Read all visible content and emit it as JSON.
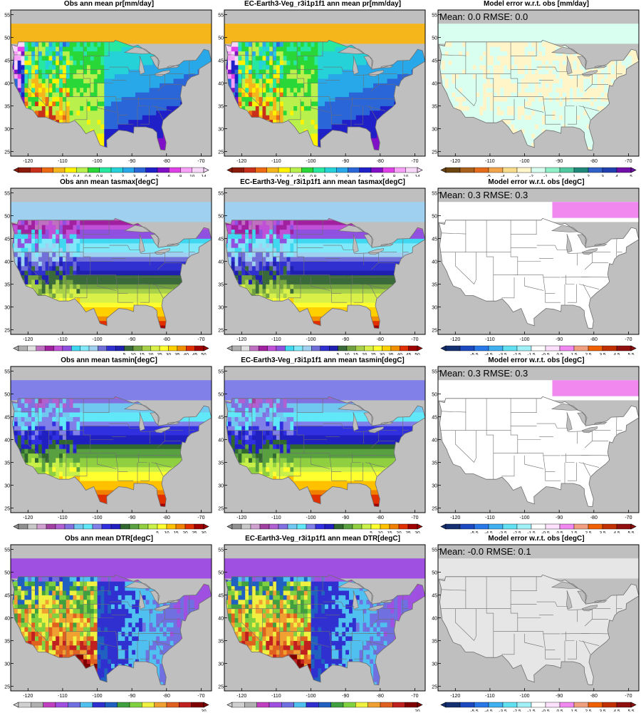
{
  "chart_data": {
    "type": "heatmap",
    "lon_ticks": [
      -120,
      -110,
      -100,
      -90,
      -80,
      -70
    ],
    "lat_ticks": [
      25,
      30,
      35,
      40,
      45,
      50,
      55
    ],
    "lon_range": [
      -125,
      -67
    ],
    "lat_range": [
      24,
      56
    ],
    "panels": [
      {
        "title": "Obs  ann mean pr[mm/day]",
        "field": "pr",
        "scale": "pr",
        "lbl_set": "pr"
      },
      {
        "title": "EC-Earth3-Veg_r3i1p1f1 ann mean pr[mm/day]",
        "field": "pr",
        "scale": "pr",
        "lbl_set": "pr"
      },
      {
        "title": "Model error w.r.t. obs [mm/day]",
        "field": "pr_err",
        "scale": "err_pr",
        "lbl_set": "err_pr",
        "stats": {
          "mean": "Mean: 0.0",
          "rmse": "RMSE: 0.0"
        }
      },
      {
        "title": "Obs  ann mean tasmax[degC]",
        "field": "tasmax",
        "scale": "tasmax",
        "lbl_set": "t50"
      },
      {
        "title": "EC-Earth3-Veg_r3i1p1f1 ann mean tasmax[degC]",
        "field": "tasmax",
        "scale": "tasmax",
        "lbl_set": "t50"
      },
      {
        "title": "Model error w.r.t. obs [degC]",
        "field": "tasmax_err",
        "scale": "err_t",
        "lbl_set": "err_t",
        "stats": {
          "mean": "Mean: 0.3",
          "rmse": "RMSE: 0.3"
        }
      },
      {
        "title": "Obs  ann mean tasmin[degC]",
        "field": "tasmin",
        "scale": "tasmin",
        "lbl_set": "t30"
      },
      {
        "title": "EC-Earth3-Veg_r3i1p1f1 ann mean tasmin[degC]",
        "field": "tasmin",
        "scale": "tasmin",
        "lbl_set": "t30"
      },
      {
        "title": "Model error w.r.t. obs [degC]",
        "field": "tasmin_err",
        "scale": "err_t",
        "lbl_set": "err_t",
        "stats": {
          "mean": "Mean: 0.3",
          "rmse": "RMSE: 0.3"
        }
      },
      {
        "title": "Obs  ann mean DTR[degC]",
        "field": "dtr",
        "scale": "dtr",
        "lbl_set": "t20"
      },
      {
        "title": "EC-Earth3-Veg_r3i1p1f1 ann mean DTR[degC]",
        "field": "dtr",
        "scale": "dtr",
        "lbl_set": "t20"
      },
      {
        "title": "Model error w.r.t. obs [degC]",
        "field": "dtr_err",
        "scale": "err_t",
        "lbl_set": "err_t",
        "stats": {
          "mean": "Mean: -0.0",
          "rmse": "RMSE: 0.1"
        }
      }
    ],
    "scales": {
      "pr": [
        "#8c1a0a",
        "#c8301a",
        "#ee6a12",
        "#f5b61c",
        "#fff200",
        "#b9f04c",
        "#29d838",
        "#27e8a0",
        "#25d2d8",
        "#28a8e8",
        "#2a66d8",
        "#2020c8",
        "#8010c8",
        "#e040e8",
        "#f8a0f8",
        "#f8d8f8"
      ],
      "err_pr": [
        "#6b4410",
        "#a8601a",
        "#e46c1a",
        "#f2a44a",
        "#f8dc8c",
        "#fff5c8",
        "#d8fff0",
        "#90f0c8",
        "#50c8a0",
        "#208878",
        "#3060c8",
        "#2040b0",
        "#7010a8"
      ],
      "tasmax": [
        "#b0b0b0",
        "#e0e0e0",
        "#c070c0",
        "#a020a0",
        "#c050d8",
        "#9050e0",
        "#40d8f0",
        "#80e8f8",
        "#a0d0f0",
        "#7070d8",
        "#3030d0",
        "#2020b0",
        "#3a6a3a",
        "#70a040",
        "#a8d048",
        "#d8f048",
        "#ffff30",
        "#ffd000",
        "#f09000",
        "#e03000",
        "#a00000"
      ],
      "tasmin": [
        "#909090",
        "#c8c8c8",
        "#d0a0d0",
        "#a040a0",
        "#b060d0",
        "#8070e0",
        "#70c8f0",
        "#60e8f8",
        "#8080e8",
        "#3030e0",
        "#2020c0",
        "#306830",
        "#58a040",
        "#90d040",
        "#c8f048",
        "#ffff30",
        "#ffc000",
        "#f08000",
        "#e03000",
        "#a00000"
      ],
      "dtr": [
        "#d0d0d0",
        "#b0b0b0",
        "#c040c0",
        "#a050e0",
        "#7070e0",
        "#50c0f0",
        "#3030d0",
        "#2060c0",
        "#40a040",
        "#80d040",
        "#f0f040",
        "#f0a030",
        "#e06020",
        "#c02020",
        "#800000"
      ],
      "err_t": [
        "#143070",
        "#1c48c0",
        "#2878e8",
        "#40b0f0",
        "#60e0f0",
        "#a0f0f8",
        "#ffffff",
        "#fce0fc",
        "#f088f0",
        "#f0a080",
        "#f06000",
        "#c03000",
        "#901010"
      ]
    },
    "colorbar_labels": {
      "pr": [
        "0.2",
        "0.4",
        "0.6",
        "0.8",
        "1",
        "2",
        "3",
        "4",
        "5",
        "6",
        "8",
        "10",
        "14"
      ],
      "err_pr": [
        "-5",
        "-4",
        "-3",
        "-2",
        "-1",
        "0",
        "1",
        "2",
        "3",
        "4",
        "5"
      ],
      "t50": [
        "5",
        "10",
        "15",
        "20",
        "25",
        "30",
        "35",
        "40",
        "45",
        "50"
      ],
      "t30": [
        "5",
        "10",
        "15",
        "20",
        "25",
        "30"
      ],
      "t20": [
        "20"
      ],
      "err_t": [
        "-5.5",
        "-4.5",
        "-3.5",
        "-2.5",
        "-1.5",
        "-0.5",
        "0.5",
        "1.5",
        "2.5",
        "3.5",
        "4.5",
        "5.5"
      ]
    },
    "colors": {
      "land_mask": "#bfbfbf",
      "border": "#6e6e6e",
      "frame": "#000000",
      "lake": "#bebebe"
    }
  }
}
